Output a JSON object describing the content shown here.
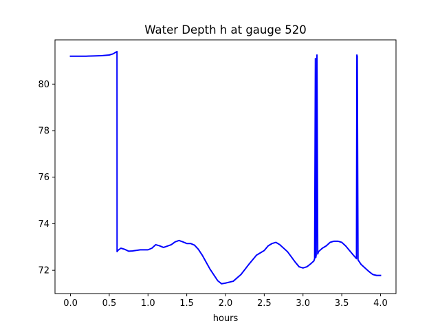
{
  "chart_data": {
    "type": "line",
    "title": "Water Depth h at gauge 520",
    "xlabel": "hours",
    "ylabel": "",
    "xlim": [
      -0.2,
      4.2
    ],
    "ylim": [
      71.0,
      81.9
    ],
    "xticks": [
      0.0,
      0.5,
      1.0,
      1.5,
      2.0,
      2.5,
      3.0,
      3.5,
      4.0
    ],
    "xtick_labels": [
      "0.0",
      "0.5",
      "1.0",
      "1.5",
      "2.0",
      "2.5",
      "3.0",
      "3.5",
      "4.0"
    ],
    "yticks": [
      72,
      74,
      76,
      78,
      80
    ],
    "ytick_labels": [
      "72",
      "74",
      "76",
      "78",
      "80"
    ],
    "grid": false,
    "series": [
      {
        "color": "#0000ff",
        "x": [
          0.0,
          0.1,
          0.2,
          0.3,
          0.4,
          0.5,
          0.55,
          0.6,
          0.601,
          0.61,
          0.65,
          0.7,
          0.75,
          0.8,
          0.9,
          1.0,
          1.05,
          1.1,
          1.15,
          1.2,
          1.3,
          1.35,
          1.4,
          1.45,
          1.5,
          1.55,
          1.6,
          1.65,
          1.7,
          1.8,
          1.9,
          1.95,
          2.0,
          2.1,
          2.2,
          2.3,
          2.4,
          2.5,
          2.55,
          2.6,
          2.65,
          2.7,
          2.8,
          2.9,
          2.95,
          3.0,
          3.05,
          3.1,
          3.14,
          3.15,
          3.16,
          3.165,
          3.17,
          3.18,
          3.19,
          3.195,
          3.2,
          3.25,
          3.3,
          3.35,
          3.4,
          3.45,
          3.5,
          3.55,
          3.6,
          3.65,
          3.69,
          3.695,
          3.7,
          3.71,
          3.75,
          3.8,
          3.85,
          3.9,
          3.95,
          4.0
        ],
        "values": [
          81.2,
          81.2,
          81.2,
          81.21,
          81.22,
          81.25,
          81.3,
          81.4,
          72.8,
          72.85,
          72.95,
          72.9,
          72.82,
          72.83,
          72.88,
          72.88,
          72.95,
          73.1,
          73.05,
          72.98,
          73.1,
          73.22,
          73.28,
          73.22,
          73.15,
          73.15,
          73.08,
          72.9,
          72.65,
          72.05,
          71.55,
          71.42,
          71.45,
          71.53,
          71.82,
          72.25,
          72.65,
          72.85,
          73.05,
          73.15,
          73.2,
          73.1,
          72.8,
          72.35,
          72.15,
          72.1,
          72.15,
          72.28,
          72.4,
          72.5,
          81.1,
          72.55,
          72.65,
          81.25,
          72.7,
          72.75,
          72.8,
          72.95,
          73.05,
          73.2,
          73.25,
          73.25,
          73.2,
          73.05,
          72.85,
          72.65,
          72.5,
          81.25,
          81.2,
          72.45,
          72.25,
          72.1,
          71.95,
          71.82,
          71.78,
          71.78
        ]
      }
    ]
  }
}
